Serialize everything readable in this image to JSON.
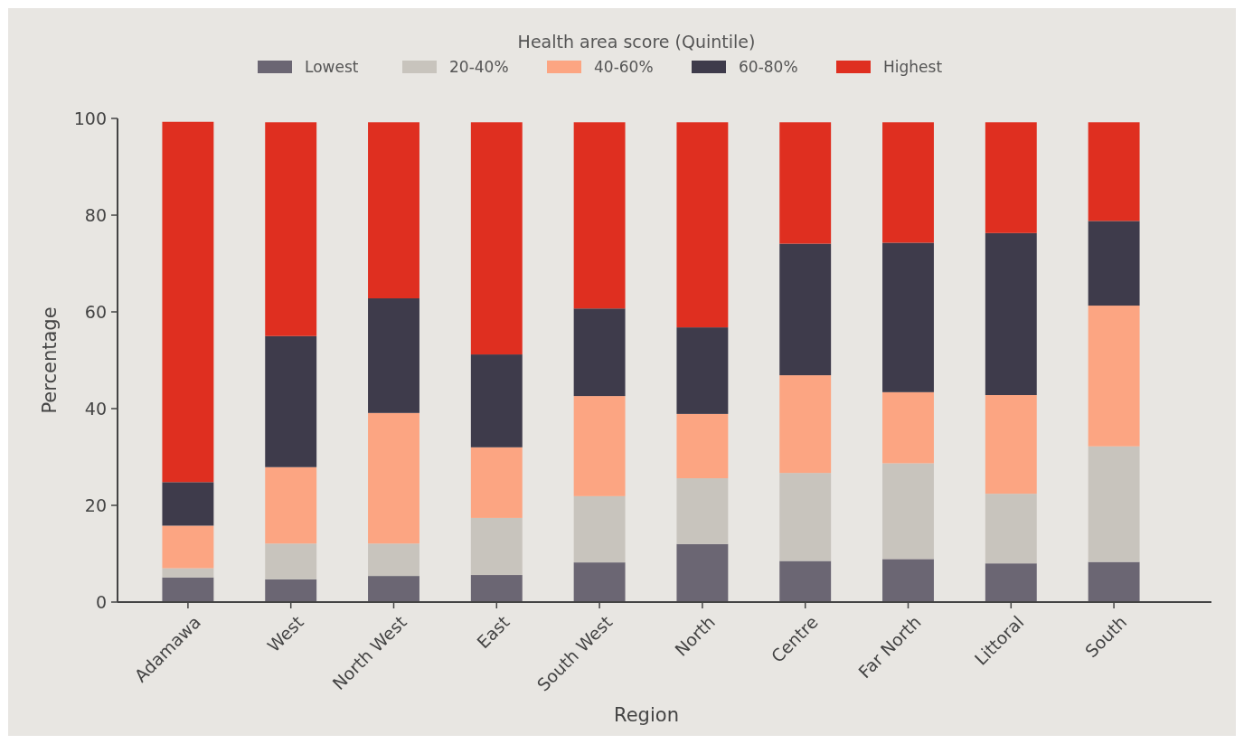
{
  "chart_data": {
    "type": "bar",
    "stacked": true,
    "xlabel": "Region",
    "ylabel": "Percentage",
    "legend_title": "Health area score (Quintile)",
    "legend": "top",
    "categories": [
      "Adamawa",
      "West",
      "North West",
      "East",
      "South West",
      "North",
      "Centre",
      "Far North",
      "Littoral",
      "South"
    ],
    "series": [
      {
        "name": "Lowest",
        "color": "#6b6673",
        "values": [
          5.1,
          4.7,
          5.4,
          5.6,
          8.2,
          12.0,
          8.5,
          8.9,
          8.0,
          8.3
        ]
      },
      {
        "name": "20-40%",
        "color": "#c8c4bd",
        "values": [
          1.9,
          7.4,
          6.7,
          11.8,
          13.7,
          13.6,
          18.2,
          19.8,
          14.4,
          23.9
        ]
      },
      {
        "name": "40-60%",
        "color": "#fca582",
        "values": [
          8.8,
          15.8,
          27.0,
          14.6,
          20.7,
          13.3,
          20.2,
          14.7,
          20.4,
          29.1
        ]
      },
      {
        "name": "60-80%",
        "color": "#3e3b4b",
        "values": [
          9.0,
          27.1,
          23.7,
          19.2,
          18.1,
          17.9,
          27.2,
          30.9,
          33.5,
          17.5
        ]
      },
      {
        "name": "Highest",
        "color": "#df2f20",
        "values": [
          74.5,
          44.2,
          36.4,
          48.0,
          38.5,
          42.4,
          25.1,
          24.9,
          22.9,
          20.4
        ]
      }
    ],
    "ylim": [
      0,
      100
    ],
    "yticks": [
      0,
      20,
      40,
      60,
      80,
      100
    ],
    "grid": false
  }
}
